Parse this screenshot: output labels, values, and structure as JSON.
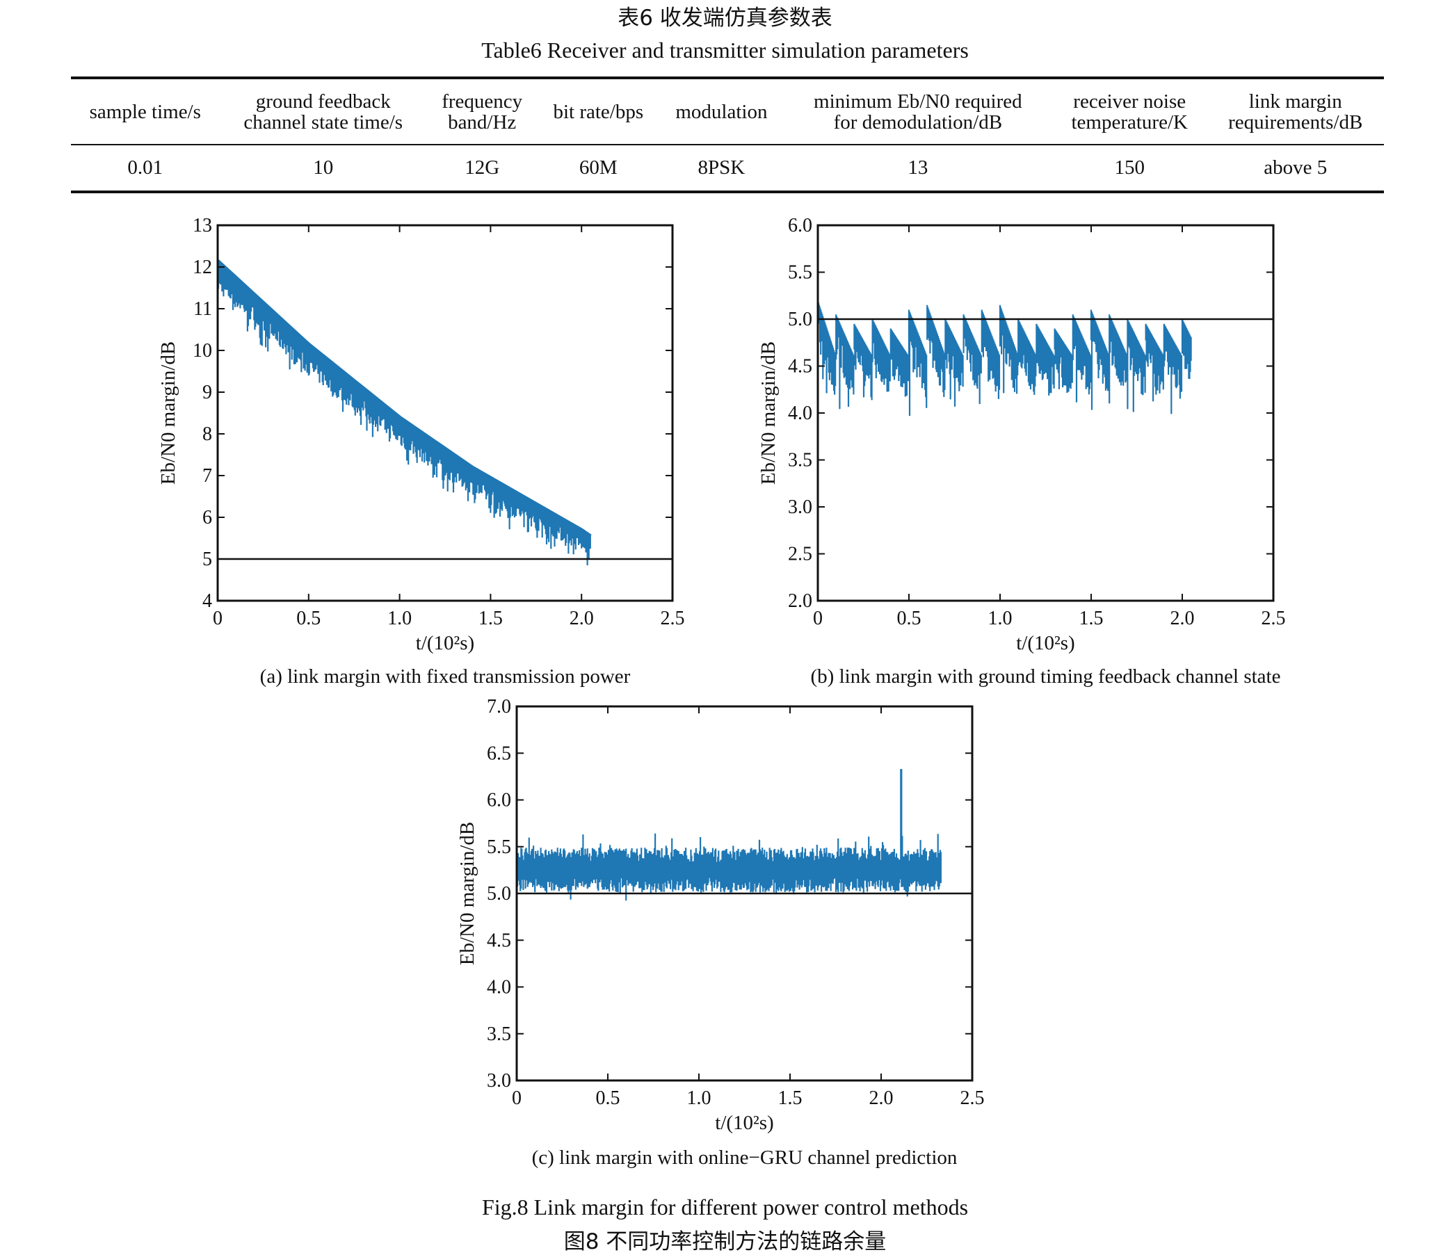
{
  "table": {
    "title_cn": "表6 收发端仿真参数表",
    "title_en": "Table6 Receiver and transmitter simulation parameters",
    "headers": [
      [
        "sample time/s"
      ],
      [
        "ground feedback",
        "channel state time/s"
      ],
      [
        "frequency",
        "band/Hz"
      ],
      [
        "bit rate/bps"
      ],
      [
        "modulation"
      ],
      [
        "minimum Eb/N0 required",
        "for demodulation/dB"
      ],
      [
        "receiver noise",
        "temperature/K"
      ],
      [
        "link margin",
        "requirements/dB"
      ]
    ],
    "row": [
      "0.01",
      "10",
      "12G",
      "60M",
      "8PSK",
      "13",
      "150",
      "above 5"
    ]
  },
  "figure": {
    "caption_en": "Fig.8 Link margin for different power control methods",
    "caption_cn": "图8 不同功率控制方法的链路余量"
  },
  "chart_data": [
    {
      "type": "line",
      "caption": "(a) link margin with fixed transmission power",
      "xlabel": "t/(10²s)",
      "ylabel": "Eb/N0 margin/dB",
      "xlim": [
        0,
        2.5
      ],
      "ylim": [
        4,
        13
      ],
      "xticks": [
        "0",
        "0.5",
        "1.0",
        "1.5",
        "2.0",
        "2.5"
      ],
      "yticks": [
        "4",
        "5",
        "6",
        "7",
        "8",
        "9",
        "10",
        "11",
        "12",
        "13"
      ],
      "reference_line": 5,
      "series_color": "#1f77b4",
      "series": [
        {
          "x": [
            0,
            0.1,
            0.2,
            0.3,
            0.4,
            0.5,
            0.6,
            0.7,
            0.8,
            0.9,
            1.0,
            1.1,
            1.2,
            1.3,
            1.4,
            1.5,
            1.6,
            1.7,
            1.8,
            1.9,
            2.0,
            2.05
          ],
          "upper": [
            12.15,
            11.75,
            11.35,
            10.95,
            10.55,
            10.15,
            9.8,
            9.45,
            9.1,
            8.75,
            8.4,
            8.1,
            7.8,
            7.5,
            7.2,
            6.95,
            6.7,
            6.45,
            6.2,
            5.95,
            5.7,
            5.55
          ],
          "lower": [
            11.4,
            11.0,
            10.6,
            10.2,
            9.8,
            9.4,
            9.05,
            8.7,
            8.4,
            8.05,
            7.7,
            7.4,
            7.1,
            6.8,
            6.55,
            6.3,
            6.05,
            5.85,
            5.6,
            5.4,
            5.2,
            5.05
          ]
        }
      ]
    },
    {
      "type": "line",
      "caption": "(b) link margin with ground timing feedback channel state",
      "xlabel": "t/(10²s)",
      "ylabel": "Eb/N0 margin/dB",
      "xlim": [
        0,
        2.5
      ],
      "ylim": [
        2.0,
        6.0
      ],
      "xticks": [
        "0",
        "0.5",
        "1.0",
        "1.5",
        "2.0",
        "2.5"
      ],
      "yticks": [
        "2.0",
        "2.5",
        "3.0",
        "3.5",
        "4.0",
        "4.5",
        "5.0",
        "5.5",
        "6.0"
      ],
      "reference_line": 5.0,
      "series_color": "#1f77b4",
      "series": [
        {
          "period": 0.1,
          "x_end": 2.05,
          "peaks": [
            5.2,
            5.05,
            4.95,
            5.0,
            4.9,
            5.1,
            5.15,
            5.0,
            5.05,
            5.1,
            5.15,
            5.0,
            4.95,
            4.9,
            5.05,
            5.1,
            5.05,
            5.0,
            4.95,
            4.95,
            5.0
          ],
          "trough": 4.6,
          "min_dips": 3.95
        }
      ]
    },
    {
      "type": "line",
      "caption": "(c) link margin with online−GRU channel prediction",
      "xlabel": "t/(10²s)",
      "ylabel": "Eb/N0 margin/dB",
      "xlim": [
        0,
        2.5
      ],
      "ylim": [
        3.0,
        7.0
      ],
      "xticks": [
        "0",
        "0.5",
        "1.0",
        "1.5",
        "2.0",
        "2.5"
      ],
      "yticks": [
        "3.0",
        "3.5",
        "4.0",
        "4.5",
        "5.0",
        "5.5",
        "6.0",
        "6.5",
        "7.0"
      ],
      "reference_line": 5.0,
      "series_color": "#1f77b4",
      "series": [
        {
          "x_end": 2.33,
          "mean": 5.25,
          "band": [
            5.05,
            5.45
          ],
          "max_spike": 6.33,
          "spike_x": 2.11
        }
      ]
    }
  ]
}
